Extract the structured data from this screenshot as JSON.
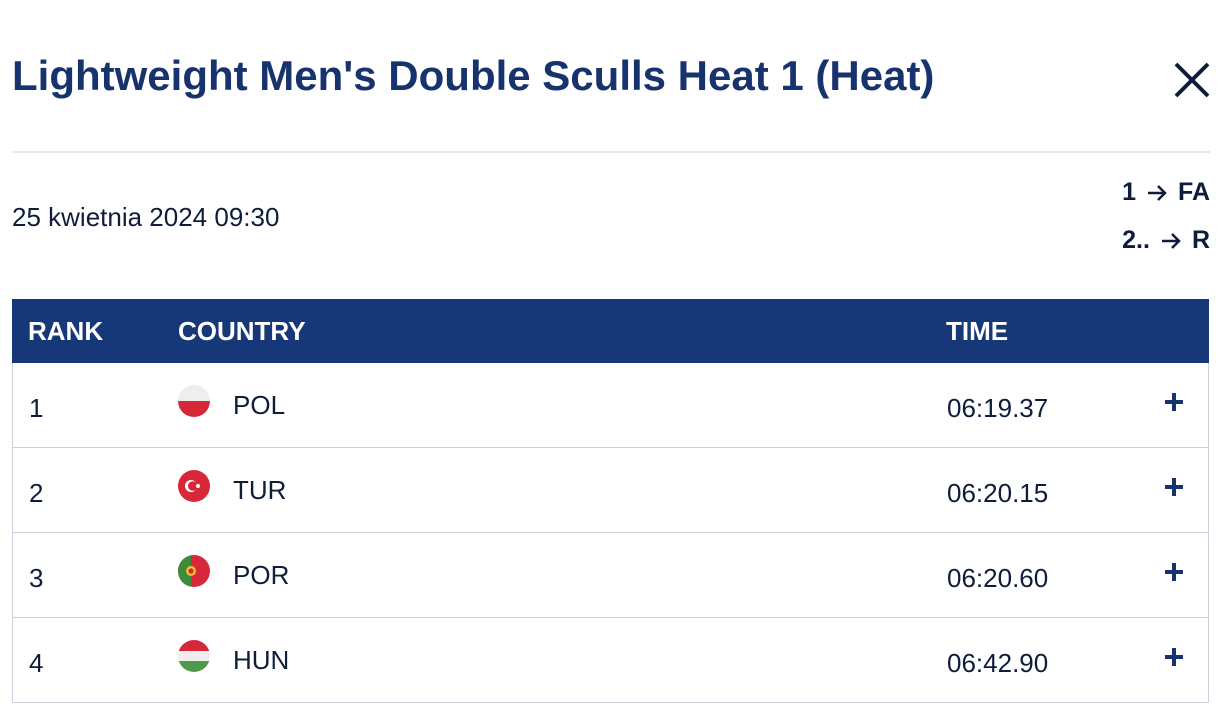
{
  "header": {
    "title": "Lightweight Men's Double Sculls Heat 1 (Heat)"
  },
  "date": "25 kwietnia 2024 09:30",
  "progression": [
    {
      "from": "1",
      "to": "FA"
    },
    {
      "from": "2..",
      "to": "R"
    }
  ],
  "table": {
    "columns": [
      "RANK",
      "COUNTRY",
      "TIME"
    ],
    "rows": [
      [
        "1",
        "POL",
        "06:19.37"
      ],
      [
        "2",
        "TUR",
        "06:20.15"
      ],
      [
        "3",
        "POR",
        "06:20.60"
      ],
      [
        "4",
        "HUN",
        "06:42.90"
      ]
    ]
  }
}
